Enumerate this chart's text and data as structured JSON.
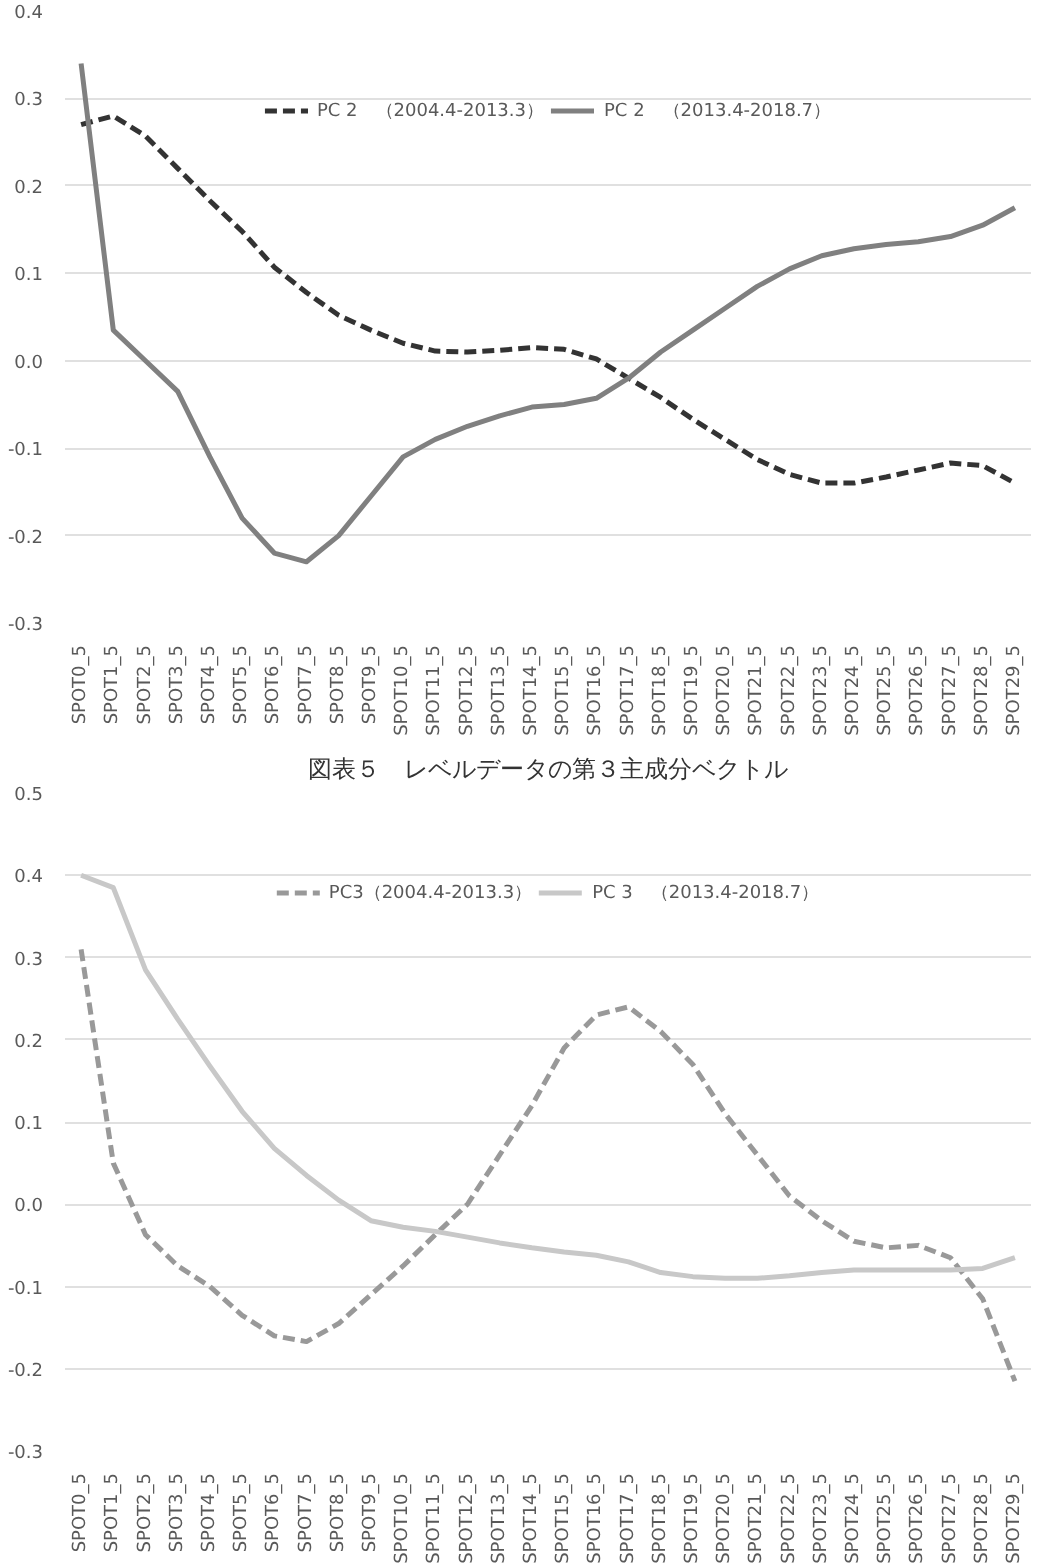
{
  "chart_data": [
    {
      "type": "line",
      "categories": [
        "SPOT0_5",
        "SPOT1_5",
        "SPOT2_5",
        "SPOT3_5",
        "SPOT4_5",
        "SPOT5_5",
        "SPOT6_5",
        "SPOT7_5",
        "SPOT8_5",
        "SPOT9_5",
        "SPOT10_5",
        "SPOT11_5",
        "SPOT12_5",
        "SPOT13_5",
        "SPOT14_5",
        "SPOT15_5",
        "SPOT16_5",
        "SPOT17_5",
        "SPOT18_5",
        "SPOT19_5",
        "SPOT20_5",
        "SPOT21_5",
        "SPOT22_5",
        "SPOT23_5",
        "SPOT24_5",
        "SPOT25_5",
        "SPOT26_5",
        "SPOT27_5",
        "SPOT28_5",
        "SPOT29_5"
      ],
      "series": [
        {
          "name": "PC 2　（2004.4-2013.3）",
          "color": "#333333",
          "line_style": "dashed",
          "values": [
            0.27,
            0.28,
            0.257,
            0.22,
            0.183,
            0.148,
            0.107,
            0.078,
            0.052,
            0.035,
            0.02,
            0.011,
            0.01,
            0.012,
            0.015,
            0.013,
            0.002,
            -0.02,
            -0.042,
            -0.067,
            -0.09,
            -0.113,
            -0.13,
            -0.14,
            -0.14,
            -0.133,
            -0.125,
            -0.117,
            -0.12,
            -0.14
          ]
        },
        {
          "name": "PC 2　（2013.4-2018.7）",
          "color": "#808080",
          "line_style": "solid",
          "values": [
            0.34,
            0.035,
            0.0,
            -0.035,
            -0.11,
            -0.18,
            -0.22,
            -0.23,
            -0.2,
            -0.155,
            -0.11,
            -0.09,
            -0.075,
            -0.063,
            -0.053,
            -0.05,
            -0.043,
            -0.02,
            0.01,
            0.035,
            0.06,
            0.085,
            0.105,
            0.12,
            0.128,
            0.133,
            0.136,
            0.142,
            0.155,
            0.175
          ]
        }
      ],
      "ylim": [
        -0.3,
        0.4
      ],
      "yticks": [
        {
          "value": -0.3,
          "label": "-0.3"
        },
        {
          "value": -0.2,
          "label": "-0.2"
        },
        {
          "value": -0.1,
          "label": "-0.1"
        },
        {
          "value": 0,
          "label": "0.0"
        },
        {
          "value": 0.1,
          "label": "0.1"
        },
        {
          "value": 0.2,
          "label": "0.2"
        },
        {
          "value": 0.3,
          "label": "0.3"
        },
        {
          "value": 0.4,
          "label": "0.4"
        }
      ],
      "grid": "y",
      "legend": "top",
      "marker": "none"
    },
    {
      "type": "line",
      "title": "図表５　レベルデータの第３主成分ベクトル",
      "categories": [
        "SPOT0_5",
        "SPOT1_5",
        "SPOT2_5",
        "SPOT3_5",
        "SPOT4_5",
        "SPOT5_5",
        "SPOT6_5",
        "SPOT7_5",
        "SPOT8_5",
        "SPOT9_5",
        "SPOT10_5",
        "SPOT11_5",
        "SPOT12_5",
        "SPOT13_5",
        "SPOT14_5",
        "SPOT15_5",
        "SPOT16_5",
        "SPOT17_5",
        "SPOT18_5",
        "SPOT19_5",
        "SPOT20_5",
        "SPOT21_5",
        "SPOT22_5",
        "SPOT23_5",
        "SPOT24_5",
        "SPOT25_5",
        "SPOT26_5",
        "SPOT27_5",
        "SPOT28_5",
        "SPOT29_5"
      ],
      "series": [
        {
          "name": "PC3（2004.4-2013.3）",
          "color": "#999999",
          "line_style": "dashed",
          "values": [
            0.31,
            0.05,
            -0.037,
            -0.075,
            -0.1,
            -0.135,
            -0.16,
            -0.167,
            -0.145,
            -0.11,
            -0.075,
            -0.037,
            0.0,
            0.06,
            0.12,
            0.19,
            0.23,
            0.24,
            0.21,
            0.17,
            0.11,
            0.06,
            0.01,
            -0.02,
            -0.045,
            -0.053,
            -0.05,
            -0.065,
            -0.115,
            -0.215
          ]
        },
        {
          "name": "PC 3　（2013.4-2018.7）",
          "color": "#c8c8c8",
          "line_style": "solid",
          "values": [
            0.4,
            0.385,
            0.285,
            0.225,
            0.168,
            0.113,
            0.068,
            0.035,
            0.005,
            -0.02,
            -0.028,
            -0.033,
            -0.04,
            -0.047,
            -0.053,
            -0.058,
            -0.062,
            -0.07,
            -0.083,
            -0.088,
            -0.09,
            -0.09,
            -0.087,
            -0.083,
            -0.08,
            -0.08,
            -0.08,
            -0.08,
            -0.078,
            -0.065
          ]
        }
      ],
      "ylim": [
        -0.3,
        0.5
      ],
      "yticks": [
        {
          "value": -0.3,
          "label": "-0.3"
        },
        {
          "value": -0.2,
          "label": "-0.2"
        },
        {
          "value": -0.1,
          "label": "-0.1"
        },
        {
          "value": 0,
          "label": "0.0"
        },
        {
          "value": 0.1,
          "label": "0.1"
        },
        {
          "value": 0.2,
          "label": "0.2"
        },
        {
          "value": 0.3,
          "label": "0.3"
        },
        {
          "value": 0.4,
          "label": "0.4"
        },
        {
          "value": 0.5,
          "label": "0.5"
        }
      ],
      "grid": "y",
      "legend": "top",
      "marker": "none"
    }
  ]
}
